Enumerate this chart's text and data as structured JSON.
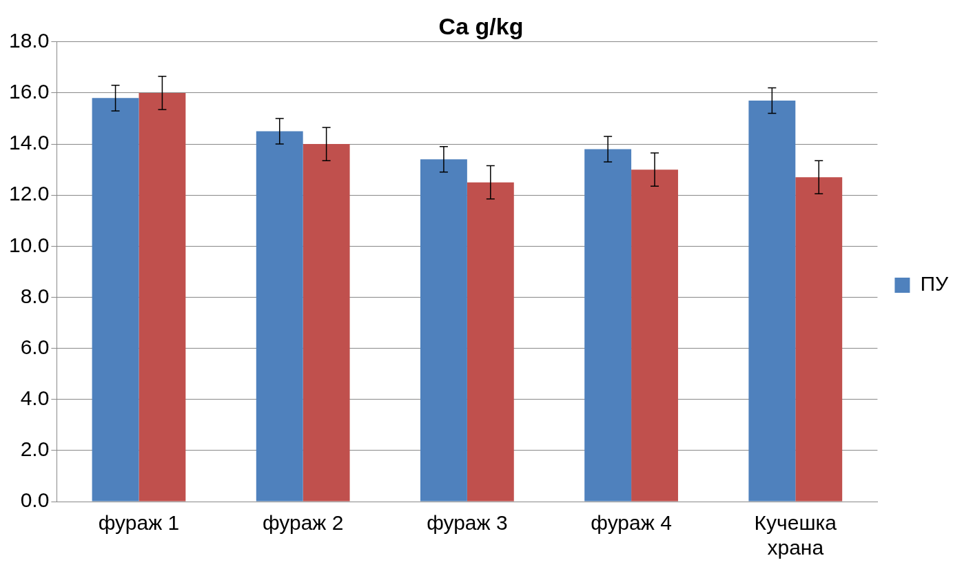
{
  "chart_data": {
    "type": "bar",
    "title": "Ca g/kg",
    "categories": [
      "фураж 1",
      "фураж 2",
      "фураж 3",
      "фураж 4",
      "Кучешка храна"
    ],
    "series": [
      {
        "name": "ПУ",
        "color": "#4f81bd",
        "values": [
          15.8,
          14.5,
          13.4,
          13.8,
          15.7
        ],
        "errors": [
          0.5,
          0.5,
          0.5,
          0.5,
          0.5
        ]
      },
      {
        "color": "#c0504d",
        "values": [
          16.0,
          14.0,
          12.5,
          13.0,
          12.7
        ],
        "errors": [
          0.65,
          0.65,
          0.65,
          0.65,
          0.65
        ]
      }
    ],
    "ylim": [
      0,
      18
    ],
    "yticks": [
      {
        "value": 0,
        "label": "0.0"
      },
      {
        "value": 2,
        "label": "2.0"
      },
      {
        "value": 4,
        "label": "4.0"
      },
      {
        "value": 6,
        "label": "6.0"
      },
      {
        "value": 8,
        "label": "8.0"
      },
      {
        "value": 10,
        "label": "10.0"
      },
      {
        "value": 12,
        "label": "12.0"
      },
      {
        "value": 14,
        "label": "14.0"
      },
      {
        "value": 16,
        "label": "16.0"
      },
      {
        "value": 18,
        "label": "18.0"
      }
    ],
    "grid": "y",
    "legend": "right"
  }
}
